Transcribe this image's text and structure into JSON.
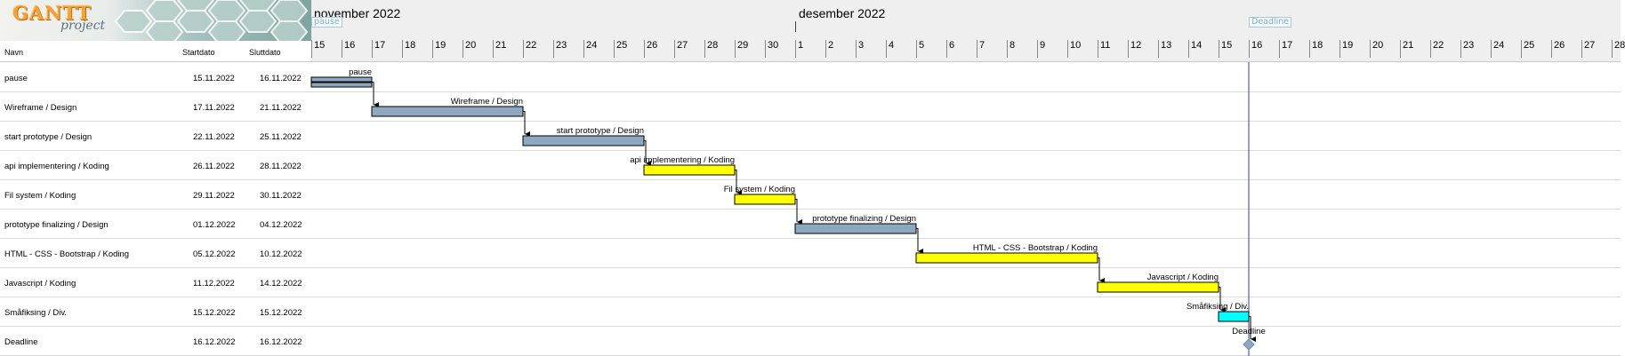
{
  "logo": {
    "text": "GANTT",
    "subtext": "project"
  },
  "table": {
    "headers": {
      "name": "Navn",
      "start": "Startdato",
      "end": "Sluttdato"
    },
    "tasks": [
      {
        "name": "pause",
        "start": "15.11.2022",
        "end": "16.11.2022",
        "day_start": 0,
        "day_end": 2,
        "color": "#8ea9bf",
        "label": "pause",
        "type": "task"
      },
      {
        "name": "Wireframe / Design",
        "start": "17.11.2022",
        "end": "21.11.2022",
        "day_start": 2,
        "day_end": 7,
        "color": "#8ea9bf",
        "label": "Wireframe / Design",
        "type": "task"
      },
      {
        "name": "start prototype / Design",
        "start": "22.11.2022",
        "end": "25.11.2022",
        "day_start": 7,
        "day_end": 11,
        "color": "#8ea9bf",
        "label": "start prototype / Design",
        "type": "task"
      },
      {
        "name": "api implementering / Koding",
        "start": "26.11.2022",
        "end": "28.11.2022",
        "day_start": 11,
        "day_end": 14,
        "color": "#ffff00",
        "label": "api implementering / Koding",
        "type": "task"
      },
      {
        "name": "Fil system / Koding",
        "start": "29.11.2022",
        "end": "30.11.2022",
        "day_start": 14,
        "day_end": 16,
        "color": "#ffff00",
        "label": "Fil system / Koding",
        "type": "task"
      },
      {
        "name": "prototype finalizing / Design",
        "start": "01.12.2022",
        "end": "04.12.2022",
        "day_start": 16,
        "day_end": 20,
        "color": "#8ea9bf",
        "label": "prototype finalizing / Design",
        "type": "task"
      },
      {
        "name": "HTML - CSS - Bootstrap / Koding",
        "start": "05.12.2022",
        "end": "10.12.2022",
        "day_start": 20,
        "day_end": 26,
        "color": "#ffff00",
        "label": "HTML - CSS - Bootstrap / Koding",
        "type": "task"
      },
      {
        "name": "Javascript / Koding",
        "start": "11.12.2022",
        "end": "14.12.2022",
        "day_start": 26,
        "day_end": 30,
        "color": "#ffff00",
        "label": "Javascript / Koding",
        "type": "task"
      },
      {
        "name": "Småfiksing / Div.",
        "start": "15.12.2022",
        "end": "15.12.2022",
        "day_start": 30,
        "day_end": 31,
        "color": "#00ffff",
        "label": "Småfiksing / Div.",
        "type": "task"
      },
      {
        "name": "Deadline",
        "start": "16.12.2022",
        "end": "16.12.2022",
        "day_start": 31,
        "day_end": 31,
        "color": "#8ea9bf",
        "label": "Deadline",
        "type": "milestone"
      }
    ]
  },
  "timeline": {
    "months": [
      {
        "label": "november 2022",
        "day_index": 0
      },
      {
        "label": "desember 2022",
        "day_index": 16
      }
    ],
    "days": [
      "15",
      "16",
      "17",
      "18",
      "19",
      "20",
      "21",
      "22",
      "23",
      "24",
      "25",
      "26",
      "27",
      "28",
      "29",
      "30",
      "1",
      "2",
      "3",
      "4",
      "5",
      "6",
      "7",
      "8",
      "9",
      "10",
      "11",
      "12",
      "13",
      "14",
      "15",
      "16",
      "17",
      "18",
      "19",
      "20",
      "21",
      "22",
      "23",
      "24",
      "25",
      "26",
      "27",
      "28"
    ],
    "markers": [
      {
        "label": "pause",
        "day_index": 0
      },
      {
        "label": "Deadline",
        "day_index": 31
      }
    ],
    "deadline_day_index": 31,
    "colors": {
      "design": "#8ea9bf",
      "koding": "#ffff00",
      "div": "#00ffff",
      "deadline_line": "#3a3a8c",
      "milestone": "#8fa8c2"
    }
  }
}
